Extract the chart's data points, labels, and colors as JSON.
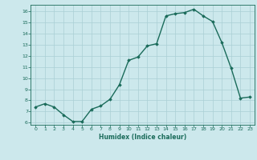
{
  "xlabel": "Humidex (Indice chaleur)",
  "ylabel": "",
  "x": [
    0,
    1,
    2,
    3,
    4,
    5,
    6,
    7,
    8,
    9,
    10,
    11,
    12,
    13,
    14,
    15,
    16,
    17,
    18,
    19,
    20,
    21,
    22,
    23
  ],
  "y": [
    7.4,
    7.7,
    7.4,
    6.7,
    6.1,
    6.1,
    7.2,
    7.5,
    8.1,
    9.4,
    11.6,
    11.9,
    12.9,
    13.1,
    15.6,
    15.8,
    15.9,
    16.2,
    15.6,
    15.1,
    13.2,
    10.9,
    8.2,
    8.3
  ],
  "line_color": "#1a6b5a",
  "bg_color": "#cce8ec",
  "grid_color": "#aacfd4",
  "ylim": [
    5.8,
    16.6
  ],
  "xlim": [
    -0.5,
    23.5
  ],
  "yticks": [
    6,
    7,
    8,
    9,
    10,
    11,
    12,
    13,
    14,
    15,
    16
  ],
  "xticks": [
    0,
    1,
    2,
    3,
    4,
    5,
    6,
    7,
    8,
    9,
    10,
    11,
    12,
    13,
    14,
    15,
    16,
    17,
    18,
    19,
    20,
    21,
    22,
    23
  ],
  "tick_color": "#1a6b5a",
  "label_color": "#1a6b5a",
  "marker": "D",
  "marker_size": 1.8,
  "linewidth": 1.0
}
